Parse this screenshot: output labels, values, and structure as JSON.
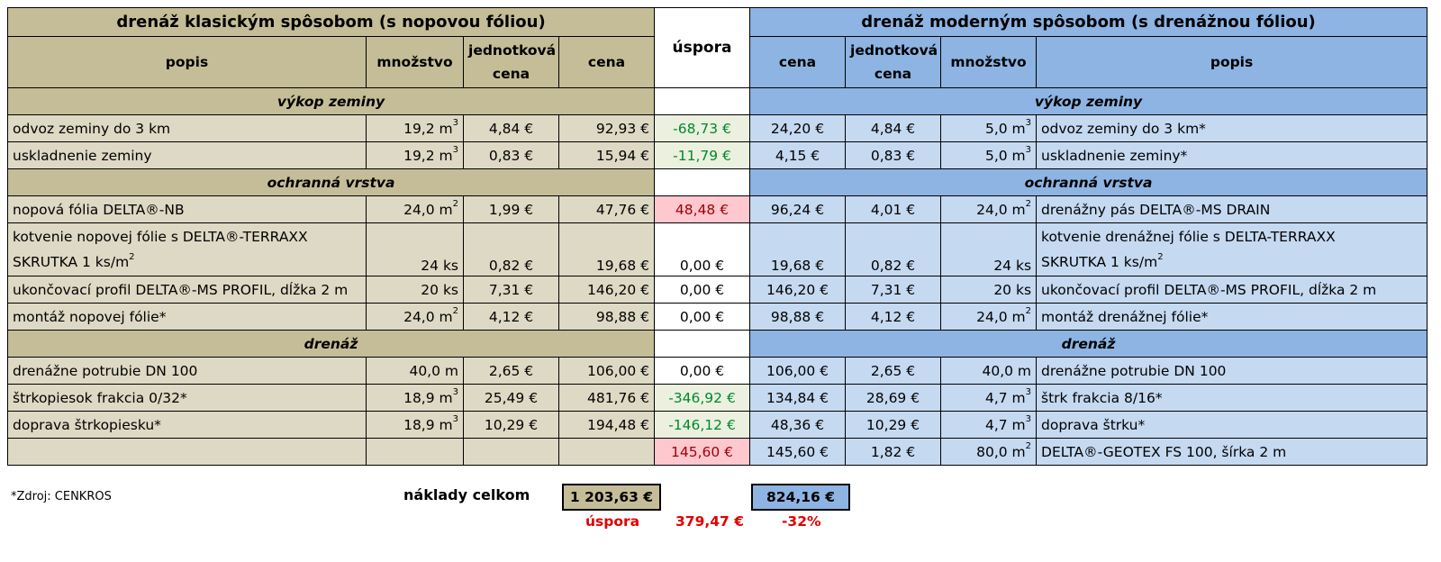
{
  "left_title": "drenáž klasickým spôsobom (s nopovou fóliou)",
  "right_title": "drenáž moderným spôsobom (s drenážnou fóliou)",
  "headers": {
    "popis": "popis",
    "mnozstvo": "množstvo",
    "jednotkova_cena": "jednotková cena",
    "cena": "cena",
    "uspora": "úspora"
  },
  "sections": {
    "vykop": "výkop zeminy",
    "ochranna": "ochranná vrstva",
    "drenaz": "drenáž"
  },
  "rows": [
    {
      "l_desc": "odvoz zeminy do 3 km",
      "l_qty": "19,2 m",
      "l_unit": "3",
      "l_price": "4,84 €",
      "l_total": "92,93 €",
      "saving": "-68,73 €",
      "r_total": "24,20 €",
      "r_price": "4,84 €",
      "r_qty": "5,0 m",
      "r_unit": "3",
      "r_desc": "odvoz zeminy do 3 km*"
    },
    {
      "l_desc": "uskladnenie zeminy",
      "l_qty": "19,2 m",
      "l_unit": "3",
      "l_price": "0,83 €",
      "l_total": "15,94 €",
      "saving": "-11,79 €",
      "r_total": "4,15 €",
      "r_price": "0,83 €",
      "r_qty": "5,0 m",
      "r_unit": "3",
      "r_desc": "uskladnenie zeminy*"
    },
    {
      "l_desc": "nopová fólia DELTA®-NB",
      "l_qty": "24,0 m",
      "l_unit": "2",
      "l_price": "1,99 €",
      "l_total": "47,76 €",
      "saving": "48,48 €",
      "r_total": "96,24 €",
      "r_price": "4,01 €",
      "r_qty": "24,0 m",
      "r_unit": "2",
      "r_desc": "drenážny pás DELTA®-MS DRAIN"
    },
    {
      "l_desc_1": "kotvenie nopovej fólie s DELTA®-TERRAXX",
      "l_desc_2": "SKRUTKA 1 ks/m",
      "l_desc_unit": "2",
      "l_qty": "24 ks",
      "l_price": "0,82 €",
      "l_total": "19,68 €",
      "saving": "0,00 €",
      "r_total": "19,68 €",
      "r_price": "0,82 €",
      "r_qty": "24 ks",
      "r_desc_1": "kotvenie drenážnej fólie s  DELTA-TERRAXX",
      "r_desc_2": "SKRUTKA 1 ks/m",
      "r_desc_unit": "2"
    },
    {
      "l_desc": "ukončovací profil DELTA®-MS PROFIL, dĺžka 2 m",
      "l_qty": "20 ks",
      "l_price": "7,31 €",
      "l_total": "146,20 €",
      "saving": "0,00 €",
      "r_total": "146,20 €",
      "r_price": "7,31 €",
      "r_qty": "20 ks",
      "r_desc": "ukončovací profil DELTA®-MS PROFIL, dĺžka 2 m"
    },
    {
      "l_desc": "montáž nopovej fólie*",
      "l_qty": "24,0 m",
      "l_unit": "2",
      "l_price": "4,12 €",
      "l_total": "98,88 €",
      "saving": "0,00 €",
      "r_total": "98,88 €",
      "r_price": "4,12 €",
      "r_qty": "24,0 m",
      "r_unit": "2",
      "r_desc": "montáž drenážnej fólie*"
    },
    {
      "l_desc": "drenážne potrubie DN 100",
      "l_qty": "40,0 m",
      "l_price": "2,65 €",
      "l_total": "106,00 €",
      "saving": "0,00 €",
      "r_total": "106,00 €",
      "r_price": "2,65 €",
      "r_qty": "40,0 m",
      "r_desc": "drenážne potrubie DN 100"
    },
    {
      "l_desc": "štrkopiesok frakcia 0/32*",
      "l_qty": "18,9 m",
      "l_unit": "3",
      "l_price": "25,49 €",
      "l_total": "481,76 €",
      "saving": "-346,92 €",
      "r_total": "134,84 €",
      "r_price": "28,69 €",
      "r_qty": "4,7 m",
      "r_unit": "3",
      "r_desc": "štrk frakcia 8/16*"
    },
    {
      "l_desc": "doprava štrkopiesku*",
      "l_qty": "18,9 m",
      "l_unit": "3",
      "l_price": "10,29 €",
      "l_total": "194,48 €",
      "saving": "-146,12 €",
      "r_total": "48,36 €",
      "r_price": "10,29 €",
      "r_qty": "4,7 m",
      "r_unit": "3",
      "r_desc": "doprava štrku*"
    },
    {
      "saving": "145,60 €",
      "r_total": "145,60 €",
      "r_price": "1,82 €",
      "r_qty": "80,0 m",
      "r_unit": "2",
      "r_desc": "DELTA®-GEOTEX FS 100, šírka 2 m"
    }
  ],
  "footer": {
    "note": "*Zdroj: CENKROS",
    "total_label": "náklady celkom",
    "left_total": "1 203,63 €",
    "right_total": "824,16 €",
    "saving_label": "úspora",
    "saving_value": "379,47 €",
    "saving_percent": "-32%"
  },
  "colors": {
    "left_body": "#ddd9c4",
    "left_header": "#c4bd97",
    "right_body": "#c5d9f1",
    "right_header": "#8db4e2",
    "saving_negative_bg": "#ebf1de",
    "saving_negative_fg": "#00882e",
    "saving_positive_bg": "#ffc7ce",
    "saving_positive_fg": "#9c0006",
    "footer_red": "#e00000"
  }
}
